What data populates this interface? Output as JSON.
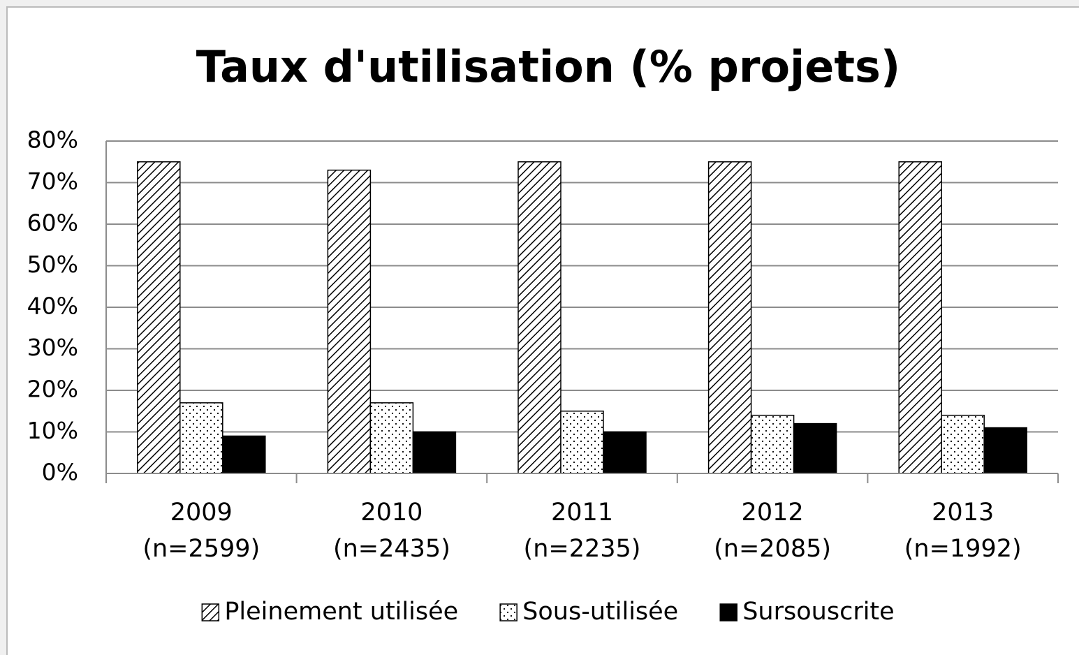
{
  "chart_data": {
    "type": "bar",
    "title": "Taux d'utilisation (% projets)",
    "categories": [
      [
        "2009",
        "(n=2599)"
      ],
      [
        "2010",
        "(n=2435)"
      ],
      [
        "2011",
        "(n=2235)"
      ],
      [
        "2012",
        "(n=2085)"
      ],
      [
        "2013",
        "(n=1992)"
      ]
    ],
    "series": [
      {
        "name": "Pleinement utilisée",
        "color": "#000000",
        "pattern": "hatch",
        "values": [
          75,
          73,
          75,
          75,
          75
        ]
      },
      {
        "name": "Sous-utilisée",
        "color": "#000000",
        "pattern": "dots",
        "values": [
          17,
          17,
          15,
          14,
          14
        ]
      },
      {
        "name": "Sursouscrite",
        "color": "#000000",
        "pattern": "solid",
        "values": [
          9,
          10,
          10,
          12,
          11
        ]
      }
    ],
    "ylim": [
      0,
      80
    ],
    "yticks": [
      {
        "value": 0,
        "label": "0%"
      },
      {
        "value": 10,
        "label": "10%"
      },
      {
        "value": 20,
        "label": "20%"
      },
      {
        "value": 30,
        "label": "30%"
      },
      {
        "value": 40,
        "label": "40%"
      },
      {
        "value": 50,
        "label": "50%"
      },
      {
        "value": 60,
        "label": "60%"
      },
      {
        "value": 70,
        "label": "70%"
      },
      {
        "value": 80,
        "label": "80%"
      }
    ],
    "grid": true,
    "legend": "bottom"
  }
}
